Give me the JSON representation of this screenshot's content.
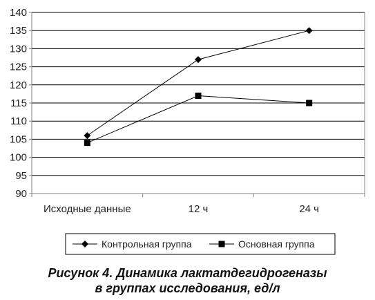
{
  "chart_data": {
    "type": "line",
    "categories": [
      "Исходные данные",
      "12 ч",
      "24 ч"
    ],
    "series": [
      {
        "name": "Контрольная группа",
        "marker": "diamond",
        "values": [
          106,
          127,
          135
        ]
      },
      {
        "name": "Основная группа",
        "marker": "square",
        "values": [
          104,
          117,
          115
        ]
      }
    ],
    "ylim": [
      90,
      140
    ],
    "yticks": [
      90,
      95,
      100,
      105,
      110,
      115,
      120,
      125,
      130,
      135,
      140
    ],
    "grid": true,
    "legend_position": "bottom"
  },
  "caption": {
    "line1": "Рисунок 4. Динамика лактатдегидрогеназы",
    "line2": "в группах исследования, ед/л"
  },
  "colors": {
    "line": "#000000",
    "grid": "#000000",
    "axis": "#808080"
  }
}
